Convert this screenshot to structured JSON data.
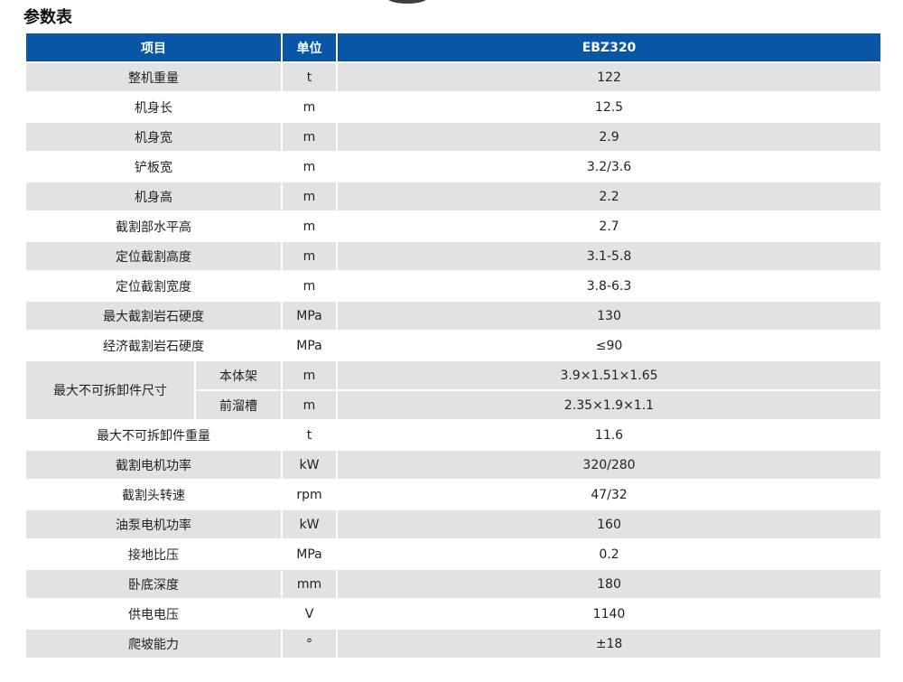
{
  "title": "参数表",
  "colors": {
    "header": "#0a56a6",
    "stripe": "#e2e2e2"
  },
  "header": {
    "item": "项目",
    "unit": "单位",
    "model": "EBZ320"
  },
  "rows": [
    {
      "item": "整机重量",
      "unit": "t",
      "value": "122"
    },
    {
      "item": "机身长",
      "unit": "m",
      "value": "12.5"
    },
    {
      "item": "机身宽",
      "unit": "m",
      "value": "2.9"
    },
    {
      "item": "铲板宽",
      "unit": "m",
      "value": "3.2/3.6"
    },
    {
      "item": "机身高",
      "unit": "m",
      "value": "2.2"
    },
    {
      "item": "截割部水平高",
      "unit": "m",
      "value": "2.7"
    },
    {
      "item": "定位截割高度",
      "unit": "m",
      "value": "3.1-5.8"
    },
    {
      "item": "定位截割宽度",
      "unit": "m",
      "value": "3.8-6.3"
    },
    {
      "item": "最大截割岩石硬度",
      "unit": "MPa",
      "value": "130"
    },
    {
      "item": "经济截割岩石硬度",
      "unit": "MPa",
      "value": "≤90"
    }
  ],
  "merged": {
    "item": "最大不可拆卸件尺寸",
    "subs": [
      {
        "item": "本体架",
        "unit": "m",
        "value": "3.9×1.51×1.65"
      },
      {
        "item": "前溜槽",
        "unit": "m",
        "value": "2.35×1.9×1.1"
      }
    ]
  },
  "rows2": [
    {
      "item": "最大不可拆卸件重量",
      "unit": "t",
      "value": "11.6"
    },
    {
      "item": "截割电机功率",
      "unit": "kW",
      "value": "320/280"
    },
    {
      "item": "截割头转速",
      "unit": "rpm",
      "value": "47/32"
    },
    {
      "item": "油泵电机功率",
      "unit": "kW",
      "value": "160"
    },
    {
      "item": "接地比压",
      "unit": "MPa",
      "value": "0.2"
    },
    {
      "item": "卧底深度",
      "unit": "mm",
      "value": "180"
    },
    {
      "item": "供电电压",
      "unit": "V",
      "value": "1140"
    },
    {
      "item": "爬坡能力",
      "unit": "°",
      "value": "±18"
    }
  ]
}
